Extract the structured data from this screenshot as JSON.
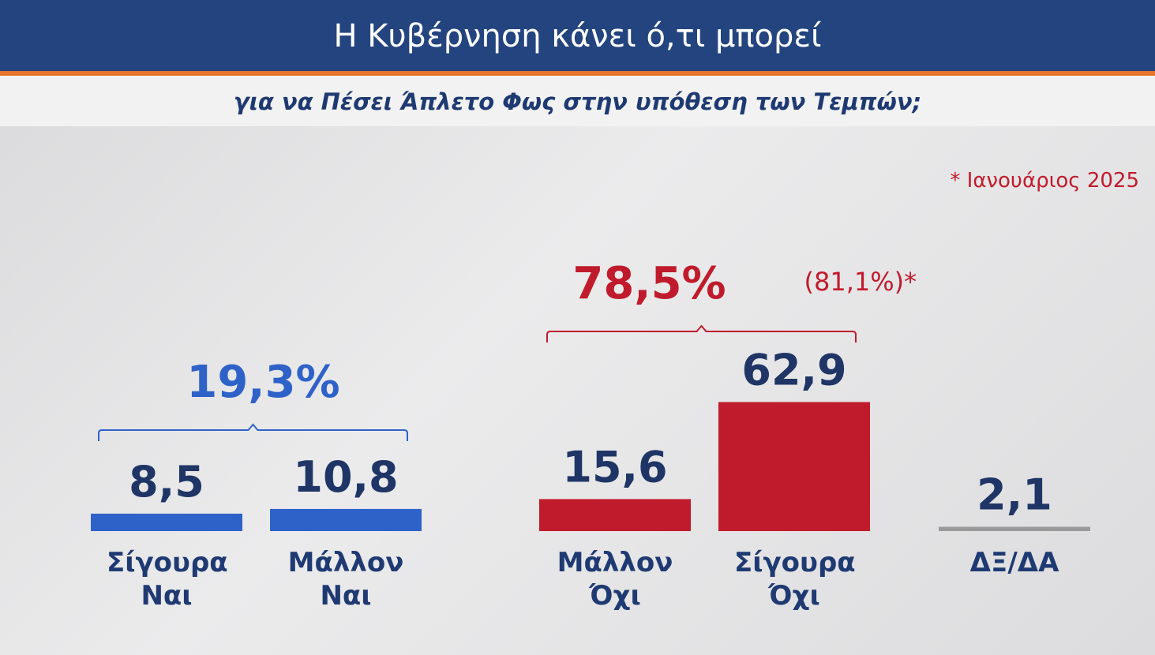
{
  "chart_data": {
    "type": "bar",
    "title": "Η Κυβέρνηση κάνει ό,τι μπορεί",
    "subtitle": "για να Πέσει Άπλετο Φως στην υπόθεση των Τεμπών;",
    "note": "* Ιανουάριος 2025",
    "categories": [
      "Σίγουρα Ναι",
      "Μάλλον Ναι",
      "Μάλλον Όχι",
      "Σίγουρα Όχι",
      "ΔΞ/ΔΑ"
    ],
    "values": [
      8.5,
      10.8,
      15.6,
      62.9,
      2.1
    ],
    "value_labels": [
      "8,5",
      "10,8",
      "15,6",
      "62,9",
      "2,1"
    ],
    "colors": [
      "#2f62c8",
      "#2f62c8",
      "#c01b2c",
      "#c01b2c",
      "#9a9a9a"
    ],
    "groups": [
      {
        "value": 19.3,
        "value_label": "19,3%",
        "color": "#2f62c8"
      },
      {
        "value": 78.5,
        "value_label": "78,5%",
        "color": "#c01b2c",
        "previous": 81.1,
        "previous_label": "(81,1%)*"
      }
    ]
  }
}
